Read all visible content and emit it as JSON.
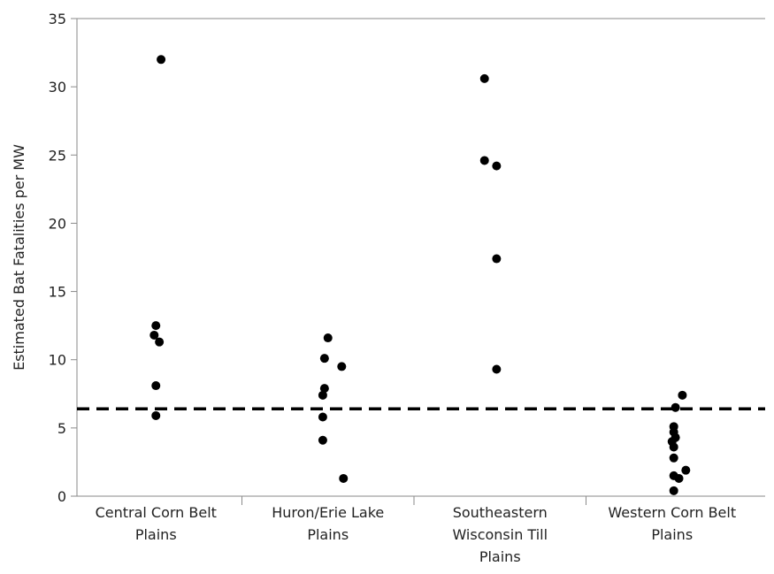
{
  "chart_data": {
    "type": "scatter",
    "ylabel": "Estimated Bat Fatalities per MW",
    "xlabel": "",
    "ylim": [
      0,
      35
    ],
    "yticks": [
      0,
      5,
      10,
      15,
      20,
      25,
      30,
      35
    ],
    "grid": false,
    "reference_line": {
      "y": 6.4,
      "style": "dashed"
    },
    "categories": [
      {
        "label_lines": [
          "Central Corn Belt",
          "Plains"
        ]
      },
      {
        "label_lines": [
          "Huron/Erie Lake",
          "Plains"
        ]
      },
      {
        "label_lines": [
          "Southeastern",
          "Wisconsin Till",
          "Plains"
        ]
      },
      {
        "label_lines": [
          "Western Corn Belt",
          "Plains"
        ]
      }
    ],
    "points": [
      {
        "category": 0,
        "y": 32.0,
        "jitter": 0.03
      },
      {
        "category": 0,
        "y": 12.5,
        "jitter": 0.0
      },
      {
        "category": 0,
        "y": 11.8,
        "jitter": -0.01
      },
      {
        "category": 0,
        "y": 11.3,
        "jitter": 0.02
      },
      {
        "category": 0,
        "y": 8.1,
        "jitter": 0.0
      },
      {
        "category": 0,
        "y": 5.9,
        "jitter": 0.0
      },
      {
        "category": 1,
        "y": 11.6,
        "jitter": 0.0
      },
      {
        "category": 1,
        "y": 10.1,
        "jitter": -0.02
      },
      {
        "category": 1,
        "y": 9.5,
        "jitter": 0.08
      },
      {
        "category": 1,
        "y": 7.9,
        "jitter": -0.02
      },
      {
        "category": 1,
        "y": 7.4,
        "jitter": -0.03
      },
      {
        "category": 1,
        "y": 5.8,
        "jitter": -0.03
      },
      {
        "category": 1,
        "y": 4.1,
        "jitter": -0.03
      },
      {
        "category": 1,
        "y": 1.3,
        "jitter": 0.09
      },
      {
        "category": 2,
        "y": 30.6,
        "jitter": -0.09
      },
      {
        "category": 2,
        "y": 24.6,
        "jitter": -0.09
      },
      {
        "category": 2,
        "y": 24.2,
        "jitter": -0.02
      },
      {
        "category": 2,
        "y": 17.4,
        "jitter": -0.02
      },
      {
        "category": 2,
        "y": 9.3,
        "jitter": -0.02
      },
      {
        "category": 3,
        "y": 7.4,
        "jitter": 0.06
      },
      {
        "category": 3,
        "y": 6.5,
        "jitter": 0.02
      },
      {
        "category": 3,
        "y": 5.1,
        "jitter": 0.01
      },
      {
        "category": 3,
        "y": 4.7,
        "jitter": 0.01
      },
      {
        "category": 3,
        "y": 4.3,
        "jitter": 0.02
      },
      {
        "category": 3,
        "y": 4.0,
        "jitter": 0.0
      },
      {
        "category": 3,
        "y": 3.6,
        "jitter": 0.01
      },
      {
        "category": 3,
        "y": 2.8,
        "jitter": 0.01
      },
      {
        "category": 3,
        "y": 1.9,
        "jitter": 0.08
      },
      {
        "category": 3,
        "y": 1.5,
        "jitter": 0.01
      },
      {
        "category": 3,
        "y": 1.3,
        "jitter": 0.04
      },
      {
        "category": 3,
        "y": 0.4,
        "jitter": 0.01
      }
    ],
    "colors": {
      "point": "#000000",
      "axis": "#8a8a8a",
      "reference": "#000000"
    }
  }
}
